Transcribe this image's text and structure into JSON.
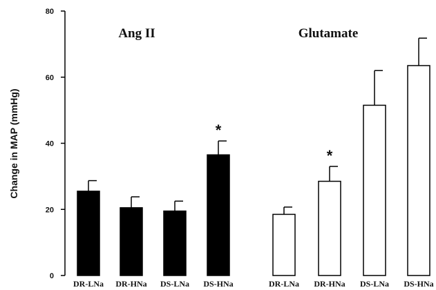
{
  "chart_data": {
    "type": "bar",
    "ylabel": "Change in MAP (mmHg)",
    "ylim": [
      0,
      80
    ],
    "yticks": [
      "0",
      "20",
      "40",
      "60",
      "80"
    ],
    "groups": [
      {
        "title": "Ang II",
        "fill": "#000000",
        "categories": [
          "DR-LNa",
          "DR-HNa",
          "DS-LNa",
          "DS-HNa"
        ],
        "values": [
          25.5,
          20.5,
          19.5,
          36.5
        ],
        "errors": [
          3.2,
          3.3,
          3.0,
          4.2
        ],
        "annotations": [
          "",
          "",
          "",
          "*"
        ]
      },
      {
        "title": "Glutamate",
        "fill": "#ffffff",
        "categories": [
          "DR-LNa",
          "DR-HNa",
          "DS-LNa",
          "DS-HNa"
        ],
        "values": [
          18.5,
          28.5,
          51.5,
          63.5
        ],
        "errors": [
          2.2,
          4.5,
          10.5,
          8.3
        ],
        "annotations": [
          "",
          "*",
          "",
          ""
        ]
      }
    ]
  }
}
